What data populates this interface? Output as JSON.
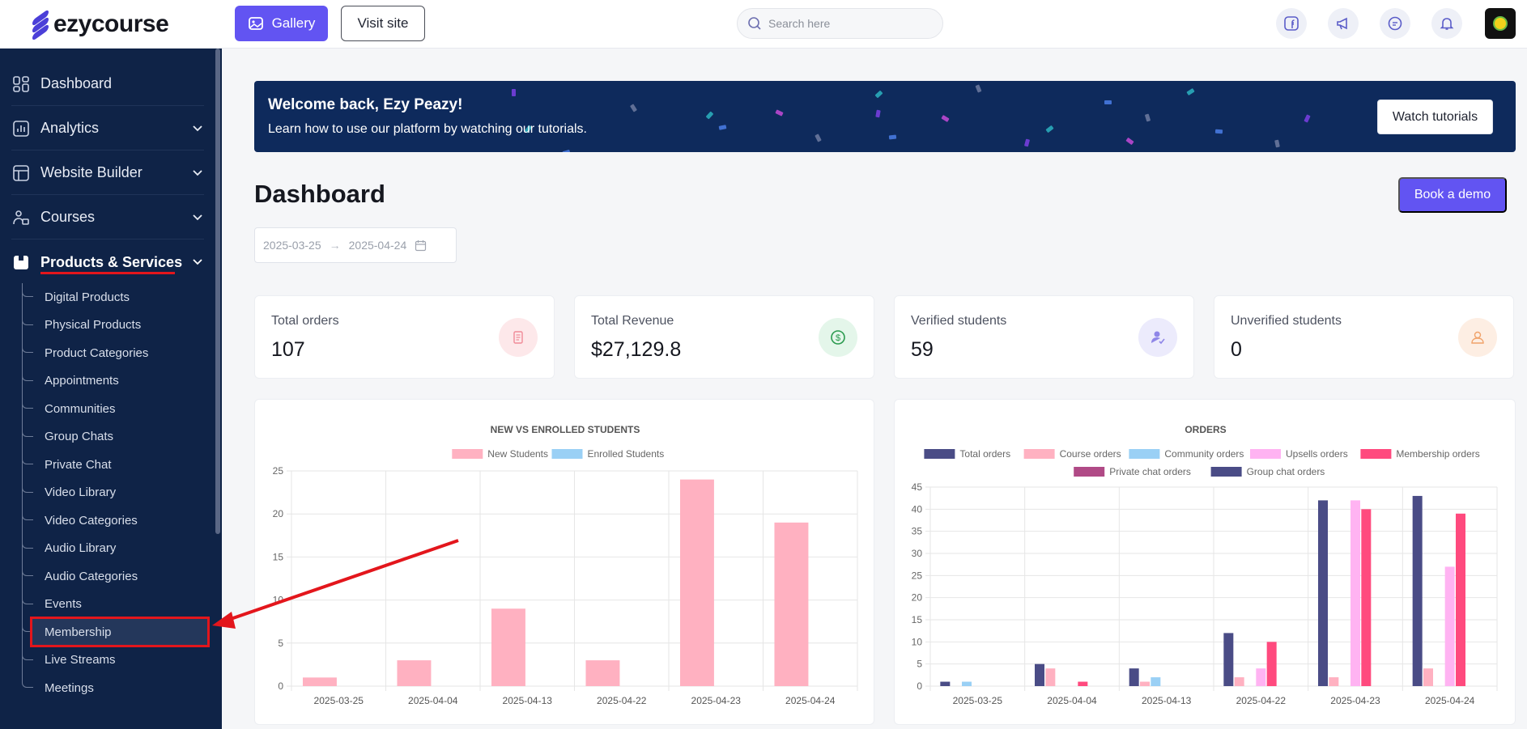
{
  "app": {
    "logo_text": "ezycourse"
  },
  "header": {
    "gallery_label": "Gallery",
    "visit_label": "Visit site",
    "search_placeholder": "Search here"
  },
  "sidebar": {
    "items": [
      {
        "label": "Dashboard",
        "icon": "dashboard-icon"
      },
      {
        "label": "Analytics",
        "icon": "analytics-icon"
      },
      {
        "label": "Website Builder",
        "icon": "website-builder-icon"
      },
      {
        "label": "Courses",
        "icon": "courses-icon"
      },
      {
        "label": "Products & Services",
        "icon": "products-icon"
      }
    ],
    "sub_items": [
      "Digital Products",
      "Physical Products",
      "Product Categories",
      "Appointments",
      "Communities",
      "Group Chats",
      "Private Chat",
      "Video Library",
      "Video Categories",
      "Audio Library",
      "Audio Categories",
      "Events",
      "Membership",
      "Live Streams",
      "Meetings"
    ]
  },
  "banner": {
    "title": "Welcome back, Ezy Peazy!",
    "subtitle": "Learn how to use our platform by watching our tutorials.",
    "button": "Watch tutorials"
  },
  "main": {
    "title": "Dashboard",
    "demo_button": "Book a demo",
    "date_from": "2025-03-25",
    "date_to": "2025-04-24"
  },
  "stats": [
    {
      "label": "Total orders",
      "value": "107"
    },
    {
      "label": "Total Revenue",
      "value": "$27,129.8"
    },
    {
      "label": "Verified students",
      "value": "59"
    },
    {
      "label": "Unverified students",
      "value": "0"
    }
  ],
  "chart_data": [
    {
      "type": "bar",
      "title": "NEW VS ENROLLED STUDENTS",
      "categories": [
        "2025-03-25",
        "2025-04-04",
        "2025-04-13",
        "2025-04-22",
        "2025-04-23",
        "2025-04-24"
      ],
      "series": [
        {
          "name": "New Students",
          "color": "#ffb1c1",
          "values": [
            1,
            3,
            9,
            3,
            24,
            19
          ]
        },
        {
          "name": "Enrolled Students",
          "color": "#9ad0f5",
          "values": [
            0,
            0,
            0,
            0,
            0,
            0
          ]
        }
      ],
      "ylim": [
        0,
        25
      ],
      "yticks": [
        0,
        5,
        10,
        15,
        20,
        25
      ],
      "legend": "top",
      "grid": true
    },
    {
      "type": "bar",
      "title": "ORDERS",
      "categories": [
        "2025-03-25",
        "2025-04-04",
        "2025-04-13",
        "2025-04-22",
        "2025-04-23",
        "2025-04-24"
      ],
      "series": [
        {
          "name": "Total orders",
          "color": "#4a4c86",
          "values": [
            1,
            5,
            4,
            12,
            42,
            43
          ]
        },
        {
          "name": "Course orders",
          "color": "#ffb1c1",
          "values": [
            0,
            4,
            1,
            2,
            2,
            4
          ]
        },
        {
          "name": "Community orders",
          "color": "#9ad0f5",
          "values": [
            1,
            0,
            2,
            0,
            0,
            0
          ]
        },
        {
          "name": "Upsells orders",
          "color": "#ffb3f2",
          "values": [
            0,
            0,
            0,
            4,
            42,
            27
          ]
        },
        {
          "name": "Membership orders",
          "color": "#ff4a7e",
          "values": [
            0,
            1,
            0,
            10,
            40,
            39
          ]
        },
        {
          "name": "Private chat orders",
          "color": "#b04a86",
          "values": [
            0,
            0,
            0,
            0,
            0,
            0
          ]
        },
        {
          "name": "Group chat orders",
          "color": "#4a4c86",
          "values": [
            0,
            0,
            0,
            0,
            0,
            0
          ]
        }
      ],
      "ylim": [
        0,
        45
      ],
      "yticks": [
        0,
        5,
        10,
        15,
        20,
        25,
        30,
        35,
        40,
        45
      ],
      "legend": "top",
      "grid": true
    }
  ]
}
